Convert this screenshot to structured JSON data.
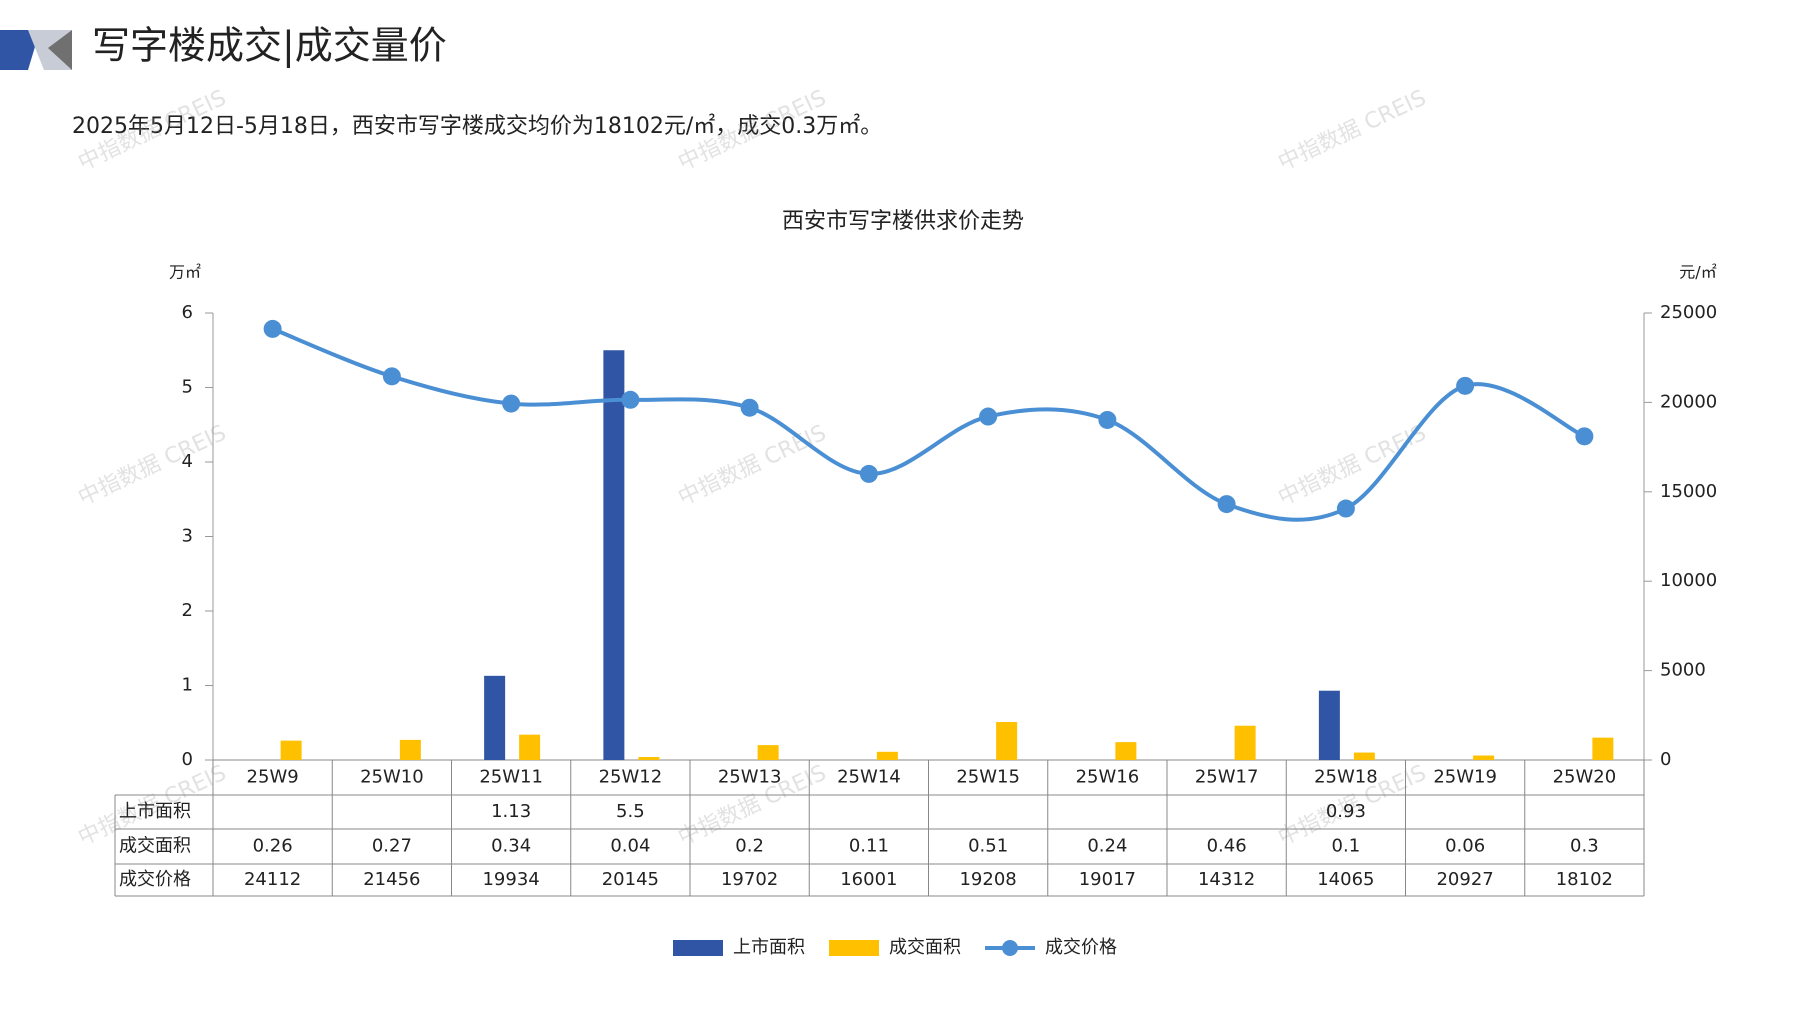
{
  "header": {
    "title": "写字楼成交|成交量价",
    "subtitle": "2025年5月12日-5月18日，西安市写字楼成交均价为18102元/㎡，成交0.3万㎡。",
    "watermark": "中指数据 CREIS"
  },
  "chart_data": {
    "type": "bar",
    "title": "西安市写字楼供求价走势",
    "y_unit": "万㎡",
    "y2_unit": "元/㎡",
    "categories": [
      "25W9",
      "25W10",
      "25W11",
      "25W12",
      "25W13",
      "25W14",
      "25W15",
      "25W16",
      "25W17",
      "25W18",
      "25W19",
      "25W20"
    ],
    "series": [
      {
        "name": "上市面积",
        "color": "#2f55a4",
        "type": "bar",
        "values": [
          null,
          null,
          1.13,
          5.5,
          null,
          null,
          null,
          null,
          null,
          0.93,
          null,
          null
        ]
      },
      {
        "name": "成交面积",
        "color": "#ffc000",
        "type": "bar",
        "values": [
          0.26,
          0.27,
          0.34,
          0.04,
          0.2,
          0.11,
          0.51,
          0.24,
          0.46,
          0.1,
          0.06,
          0.3
        ]
      },
      {
        "name": "成交价格",
        "color": "#4a8fd4",
        "type": "line",
        "axis": "y2",
        "values": [
          24112,
          21456,
          19934,
          20145,
          19702,
          16001,
          19208,
          19017,
          14312,
          14065,
          20927,
          18102
        ]
      }
    ],
    "ylim": [
      0,
      6
    ],
    "yticks": [
      0,
      1,
      2,
      3,
      4,
      5,
      6
    ],
    "y2lim": [
      0,
      25000
    ],
    "y2ticks": [
      0,
      5000,
      10000,
      15000,
      20000,
      25000
    ]
  }
}
